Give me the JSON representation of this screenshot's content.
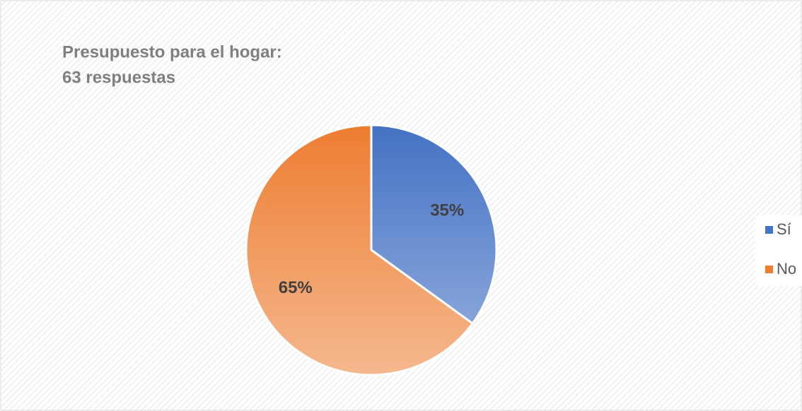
{
  "chart_data": {
    "type": "pie",
    "title": "Presupuesto para el hogar:",
    "subtitle": "63 respuestas",
    "categories": [
      "Sí",
      "No"
    ],
    "values": [
      35,
      65
    ],
    "value_labels": [
      "35%",
      "65%"
    ],
    "colors": [
      "#4472c4",
      "#ed7d31"
    ],
    "legend": "right"
  }
}
